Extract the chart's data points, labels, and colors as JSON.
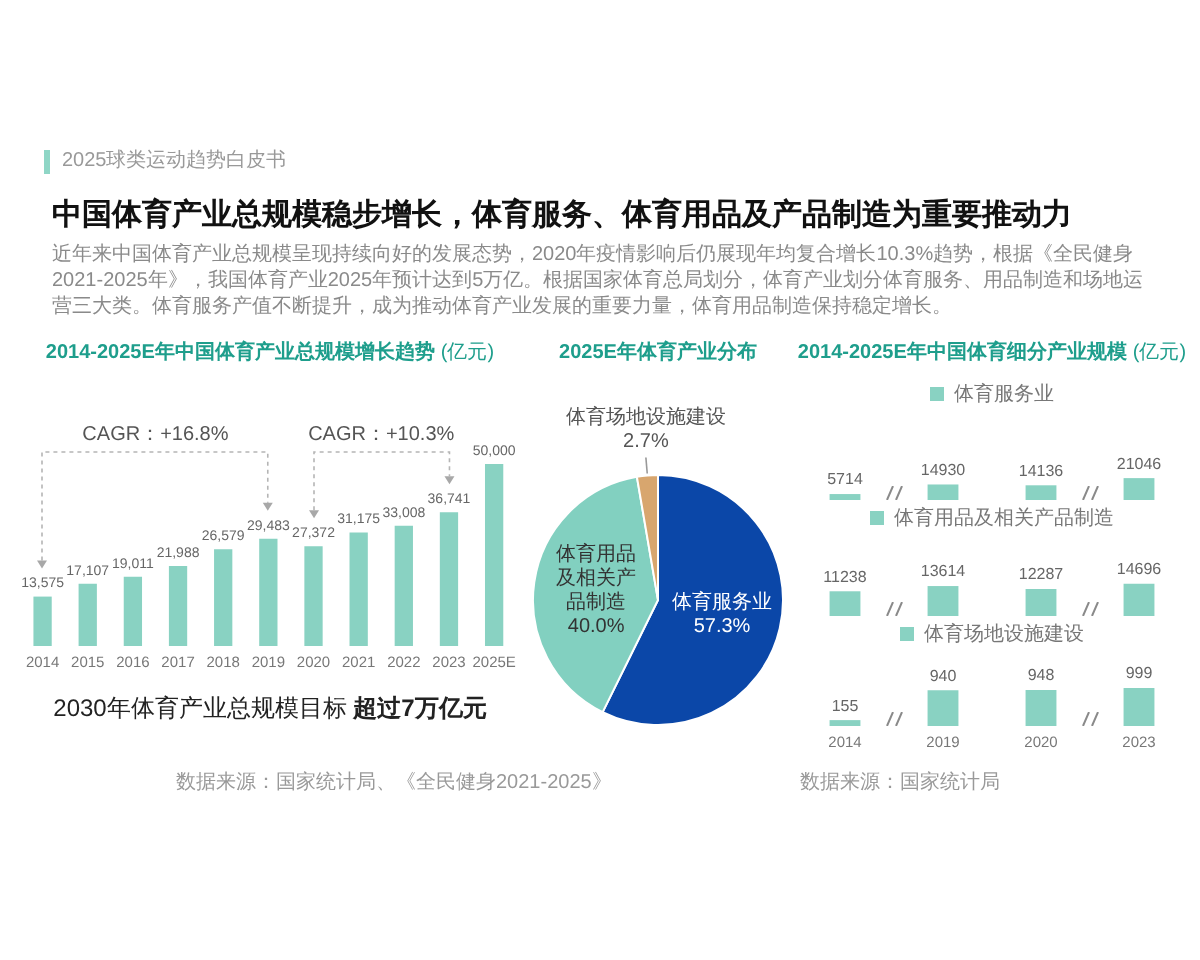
{
  "chart_data": [
    {
      "type": "other",
      "title": "中国体育产业总规模稳步增长，体育服务、体育用品及产品制造为重要推动力",
      "subtitle": "近年来中国体育产业总规模呈现持续向好的发展态势，2020年疫情影响后仍展现年均复合增长10.3%趋势，根据《全民健身2021-2025年》，我国体育产业2025年预计达到5万亿。根据国家体育总局划分，体育产业划分体育服务、用品制造和场地运营三大类。体育服务产值不断提升，成为推动体育产业发展的重要力量，体育用品制造保持稳定增长。",
      "annotations": [
        "2025球类运动趋势白皮书"
      ]
    },
    {
      "type": "bar",
      "title": "2014-2025E年中国体育产业总规模增长趋势",
      "ylabel": "(亿元)",
      "categories": [
        "2014",
        "2015",
        "2016",
        "2017",
        "2018",
        "2019",
        "2020",
        "2021",
        "2022",
        "2023",
        "2025E"
      ],
      "values": [
        13575,
        17107,
        19011,
        21988,
        26579,
        29483,
        27372,
        31175,
        33008,
        36741,
        50000
      ],
      "value_labels": [
        "13,575",
        "17,107",
        "19,011",
        "21,988",
        "26,579",
        "29,483",
        "27,372",
        "31,175",
        "33,008",
        "36,741",
        "50,000"
      ],
      "color": "#89d2c2",
      "tick_labels": "x",
      "annotations": [
        "CAGR：+16.8%",
        "CAGR：+10.3%",
        "2030年体育产业总规模目标 超过7万亿元",
        "数据来源：国家统计局、《全民健身2021-2025》"
      ]
    },
    {
      "type": "pie",
      "title": "2025E年体育产业分布",
      "categories": [
        "体育服务业",
        "体育用品及相关产品制造",
        "体育场地设施建设"
      ],
      "values": [
        57.3,
        40.0,
        2.7
      ],
      "value_labels": [
        "57.3%",
        "40.0%",
        "2.7%"
      ],
      "colors": [
        "#0b47a8",
        "#82d0c0",
        "#d8a66e"
      ]
    },
    {
      "type": "bar",
      "title": "2014-2025E年中国体育细分产业规模",
      "ylabel": "(亿元)",
      "categories": [
        "2014",
        "2019",
        "2020",
        "2023"
      ],
      "series": [
        {
          "name": "体育服务业",
          "color": "#89d2c2",
          "values": [
            5714,
            14930,
            14136,
            21046
          ]
        }
      ],
      "data_labels": true,
      "legend": "top",
      "tick_labels": false
    },
    {
      "type": "bar",
      "categories": [
        "2014",
        "2019",
        "2020",
        "2023"
      ],
      "series": [
        {
          "name": "体育用品及相关产品制造",
          "color": "#89d2c2",
          "values": [
            11238,
            13614,
            12287,
            14696
          ]
        }
      ],
      "data_labels": true,
      "legend": "top",
      "tick_labels": false
    },
    {
      "type": "bar",
      "categories": [
        "2014",
        "2019",
        "2020",
        "2023"
      ],
      "series": [
        {
          "name": "体育场地设施建设",
          "color": "#89d2c2",
          "values": [
            155,
            940,
            948,
            999
          ]
        }
      ],
      "data_labels": true,
      "legend": "top",
      "tick_labels": "x",
      "annotations": [
        "数据来源：国家统计局"
      ]
    }
  ]
}
